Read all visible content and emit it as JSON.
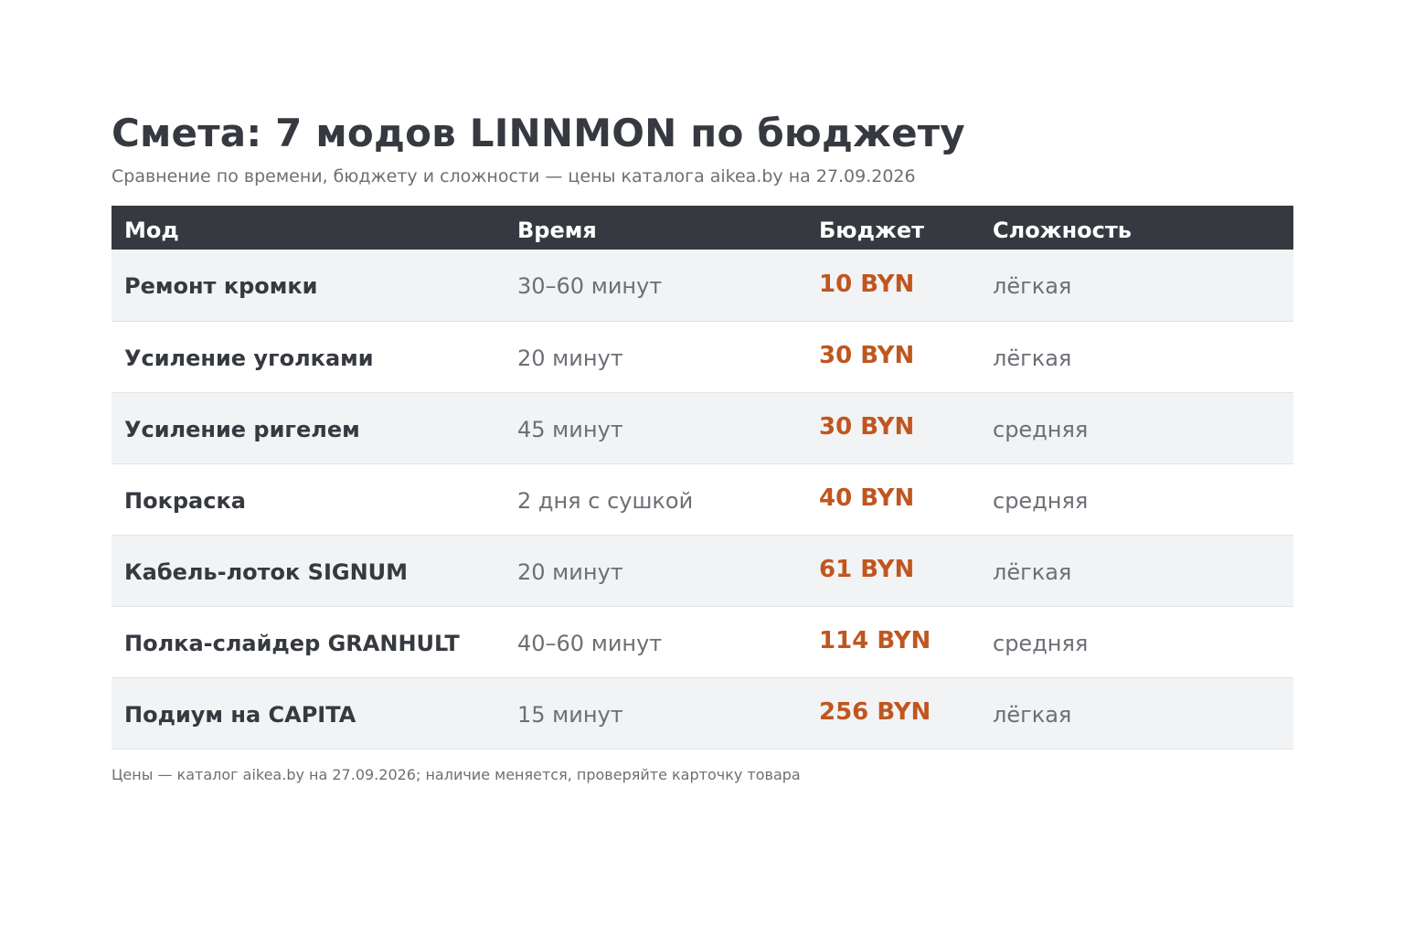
{
  "title": "Смета: 7 модов LINNMON по бюджету",
  "subtitle": "Сравнение по времени, бюджету и сложности — цены каталога aikea.by на 27.09.2026",
  "table": {
    "headers": [
      "Мод",
      "Время",
      "Бюджет",
      "Сложность"
    ],
    "rows": [
      {
        "mod": "Ремонт кромки",
        "time": "30–60 минут",
        "budget": "10 BYN",
        "difficulty": "лёгкая"
      },
      {
        "mod": "Усиление уголками",
        "time": "20 минут",
        "budget": "30 BYN",
        "difficulty": "лёгкая"
      },
      {
        "mod": "Усиление ригелем",
        "time": "45 минут",
        "budget": "30 BYN",
        "difficulty": "средняя"
      },
      {
        "mod": "Покраска",
        "time": "2 дня с сушкой",
        "budget": "40 BYN",
        "difficulty": "средняя"
      },
      {
        "mod": "Кабель-лоток SIGNUM",
        "time": "20 минут",
        "budget": "61 BYN",
        "difficulty": "лёгкая"
      },
      {
        "mod": "Полка-слайдер GRANHULT",
        "time": "40–60 минут",
        "budget": "114 BYN",
        "difficulty": "средняя"
      },
      {
        "mod": "Подиум на CAPITA",
        "time": "15 минут",
        "budget": "256 BYN",
        "difficulty": "лёгкая"
      }
    ]
  },
  "footnote": "Цены — каталог aikea.by на 27.09.2026; наличие меняется, проверяйте карточку товара",
  "colors": {
    "header_bg": "#363940",
    "row_alt_bg": "#f2f3f5",
    "accent_price": "#c0561f",
    "muted_text": "#6e6f75"
  }
}
